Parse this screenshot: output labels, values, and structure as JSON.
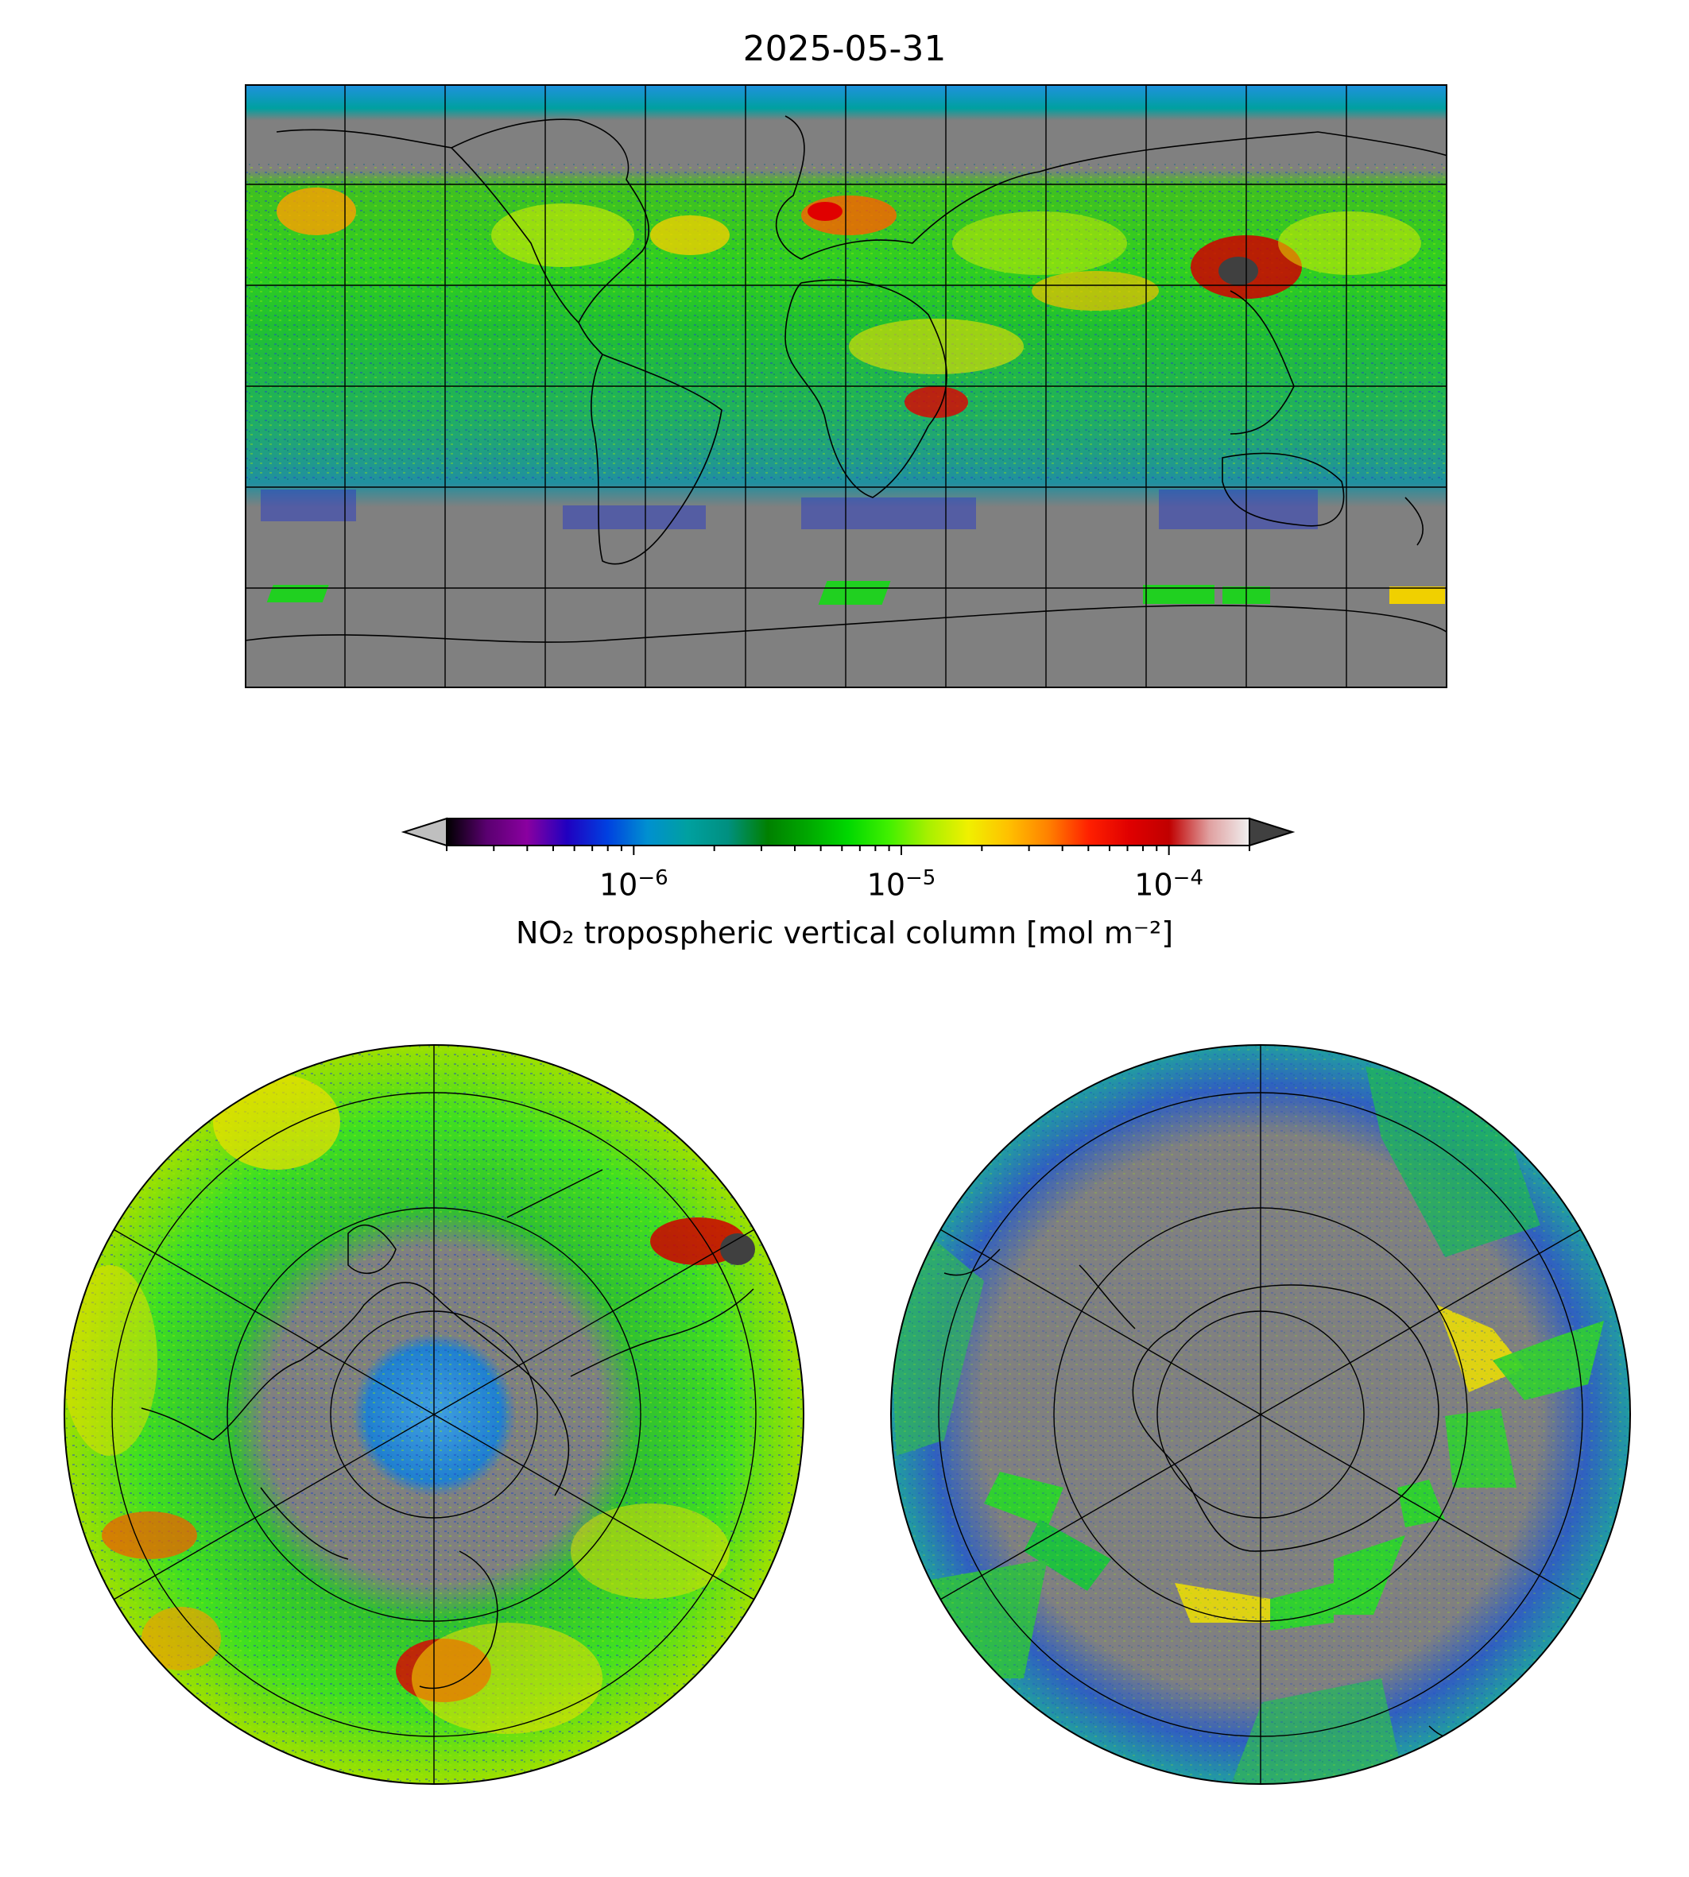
{
  "title": "2025-05-31",
  "colorbar": {
    "label": "NO₂ tropospheric vertical column [mol m⁻²]",
    "ticks": [
      {
        "base": "10",
        "exp": "−6",
        "value": 1e-06
      },
      {
        "base": "10",
        "exp": "−5",
        "value": 1e-05
      },
      {
        "base": "10",
        "exp": "−4",
        "value": 0.0001
      }
    ],
    "range": [
      2e-07,
      0.0002
    ],
    "scale": "log",
    "colors": [
      "#000000",
      "#5a0070",
      "#8a00a0",
      "#2000c0",
      "#0040e0",
      "#0090d0",
      "#00a0a0",
      "#009080",
      "#008000",
      "#00a800",
      "#00d800",
      "#40f000",
      "#a8f000",
      "#f0f000",
      "#ffc000",
      "#ff8000",
      "#ff2000",
      "#e00000",
      "#c00000",
      "#e0a0a0",
      "#f0f0f0"
    ],
    "extend_low_color": "#bfbfbf",
    "extend_high_color": "#404040"
  },
  "maps": {
    "global": {
      "projection": "PlateCarree",
      "gridlines": true
    },
    "north_polar": {
      "projection": "NorthPolarStereo",
      "gridlines": true
    },
    "south_polar": {
      "projection": "SouthPolarStereo",
      "gridlines": true
    }
  },
  "land_nodata_color": "#808080"
}
